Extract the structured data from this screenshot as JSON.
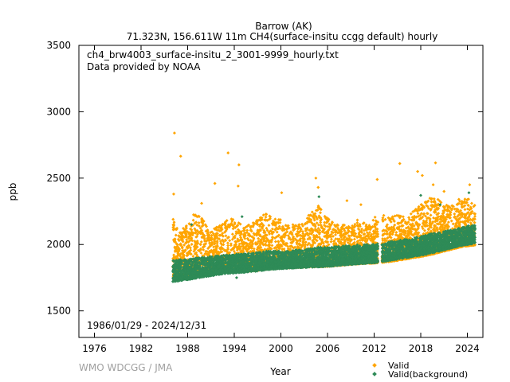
{
  "chart_data": {
    "type": "scatter",
    "title": "Barrow (AK)",
    "subtitle": "71.323N, 156.611W 11m    CH4(surface-insitu ccgg default) hourly",
    "file_label": "ch4_brw4003_surface-insitu_2_3001-9999_hourly.txt",
    "provider_label": "Data provided by NOAA",
    "date_range_label": "1986/01/29 - 2024/12/31",
    "credit": "WMO WDCGG / JMA",
    "xlabel": "Year",
    "ylabel": "ppb",
    "xlim": [
      1974,
      2026
    ],
    "ylim": [
      1300,
      3500
    ],
    "xticks": [
      1976,
      1982,
      1988,
      1994,
      2000,
      2006,
      2012,
      2018,
      2024
    ],
    "yticks": [
      1500,
      2000,
      2500,
      3000,
      3500
    ],
    "grid": false,
    "legend_position": "bottom-right",
    "series": [
      {
        "name": "Valid",
        "color": "#FFA500",
        "marker": "diamond",
        "envelope": {
          "x": [
            1986.1,
            1987,
            1988,
            1989,
            1990,
            1991,
            1992,
            1993,
            1994,
            1995,
            1996,
            1997,
            1998,
            1999,
            2000,
            2001,
            2002,
            2003,
            2004,
            2005,
            2006,
            2007,
            2008,
            2009,
            2010,
            2011,
            2012,
            2013,
            2014,
            2015,
            2016,
            2017,
            2018,
            2019,
            2020,
            2021,
            2022,
            2023,
            2024,
            2024.99
          ],
          "low": [
            1745,
            1750,
            1755,
            1762,
            1770,
            1778,
            1785,
            1790,
            1793,
            1796,
            1800,
            1805,
            1812,
            1818,
            1822,
            1825,
            1827,
            1830,
            1832,
            1833,
            1835,
            1840,
            1845,
            1850,
            1855,
            1858,
            1860,
            1865,
            1872,
            1880,
            1890,
            1900,
            1910,
            1920,
            1935,
            1950,
            1965,
            1980,
            1990,
            1995
          ],
          "high": [
            2200,
            2100,
            2150,
            2250,
            2200,
            2100,
            2150,
            2180,
            2200,
            2150,
            2150,
            2200,
            2250,
            2200,
            2200,
            2150,
            2150,
            2200,
            2250,
            2300,
            2200,
            2150,
            2150,
            2150,
            2200,
            2150,
            2200,
            2250,
            2200,
            2250,
            2200,
            2250,
            2300,
            2350,
            2350,
            2300,
            2300,
            2350,
            2350,
            2300
          ]
        },
        "outliers": [
          {
            "x": 1986.3,
            "y": 2840
          },
          {
            "x": 1987.1,
            "y": 2665
          },
          {
            "x": 1986.2,
            "y": 2380
          },
          {
            "x": 1991.5,
            "y": 2460
          },
          {
            "x": 1993.2,
            "y": 2690
          },
          {
            "x": 1994.6,
            "y": 2600
          },
          {
            "x": 1994.5,
            "y": 2440
          },
          {
            "x": 2000.1,
            "y": 2390
          },
          {
            "x": 2004.5,
            "y": 2500
          },
          {
            "x": 2004.8,
            "y": 2430
          },
          {
            "x": 2012.4,
            "y": 2490
          },
          {
            "x": 2015.3,
            "y": 2610
          },
          {
            "x": 2017.6,
            "y": 2550
          },
          {
            "x": 2018.2,
            "y": 2520
          },
          {
            "x": 2019.9,
            "y": 2615
          },
          {
            "x": 2019.6,
            "y": 2450
          },
          {
            "x": 2024.3,
            "y": 2450
          },
          {
            "x": 1989.8,
            "y": 2310
          },
          {
            "x": 2008.5,
            "y": 2330
          },
          {
            "x": 2010.3,
            "y": 2300
          },
          {
            "x": 2021.0,
            "y": 2400
          }
        ]
      },
      {
        "name": "Valid(background)",
        "color": "#2E8B57",
        "marker": "diamond",
        "envelope": {
          "x": [
            1986.1,
            1987,
            1988,
            1989,
            1990,
            1991,
            1992,
            1993,
            1994,
            1995,
            1996,
            1997,
            1998,
            1999,
            2000,
            2001,
            2002,
            2003,
            2004,
            2005,
            2006,
            2007,
            2008,
            2009,
            2010,
            2011,
            2012,
            2013,
            2014,
            2015,
            2016,
            2017,
            2018,
            2019,
            2020,
            2021,
            2022,
            2023,
            2024,
            2024.99
          ],
          "low": [
            1720,
            1728,
            1735,
            1745,
            1755,
            1765,
            1775,
            1782,
            1786,
            1790,
            1795,
            1800,
            1808,
            1814,
            1818,
            1822,
            1824,
            1827,
            1830,
            1832,
            1835,
            1840,
            1845,
            1850,
            1855,
            1858,
            1862,
            1870,
            1880,
            1890,
            1900,
            1910,
            1920,
            1930,
            1945,
            1960,
            1975,
            1990,
            2000,
            2005
          ],
          "high": [
            1880,
            1885,
            1890,
            1900,
            1905,
            1910,
            1915,
            1920,
            1925,
            1930,
            1935,
            1940,
            1950,
            1950,
            1955,
            1955,
            1960,
            1965,
            1970,
            1980,
            1980,
            1985,
            1990,
            1995,
            2000,
            2000,
            2005,
            2010,
            2020,
            2030,
            2040,
            2050,
            2060,
            2075,
            2090,
            2100,
            2110,
            2125,
            2140,
            2145
          ]
        },
        "outliers": [
          {
            "x": 1995.0,
            "y": 2210
          },
          {
            "x": 2004.9,
            "y": 2360
          },
          {
            "x": 2018.0,
            "y": 2370
          },
          {
            "x": 2024.2,
            "y": 2390
          },
          {
            "x": 1994.3,
            "y": 1750
          },
          {
            "x": 1988.5,
            "y": 2150
          },
          {
            "x": 2020.5,
            "y": 2300
          }
        ]
      }
    ]
  }
}
